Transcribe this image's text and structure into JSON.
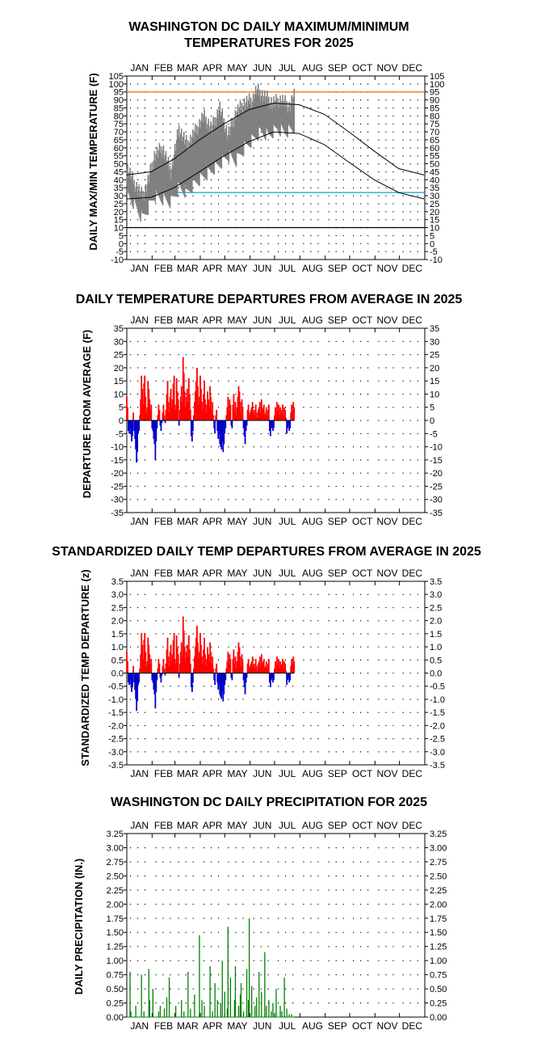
{
  "months": [
    "JAN",
    "FEB",
    "MAR",
    "APR",
    "MAY",
    "JUN",
    "JUL",
    "AUG",
    "SEP",
    "OCT",
    "NOV",
    "DEC"
  ],
  "colors": {
    "frame": "#000000",
    "observed": "#808080",
    "normal": "#000000",
    "hot_line": "#ff6600",
    "cold_line": "#00aacc",
    "zero_line": "#000000",
    "above": "#ff0000",
    "below": "#0000cc",
    "precip": "#008000"
  },
  "chart_data": [
    {
      "type": "line",
      "title_line1": "WASHINGTON DC DAILY MAXIMUM/MINIMUM",
      "title_line2": "TEMPERATURES FOR 2025",
      "ylabel": "DAILY MAX/MIN TEMPERATURE (F)",
      "ylim": [
        -10,
        105
      ],
      "yticks": [
        105,
        100,
        95,
        90,
        85,
        80,
        75,
        70,
        65,
        60,
        55,
        50,
        45,
        40,
        35,
        30,
        25,
        20,
        15,
        10,
        5,
        0,
        -5,
        -10
      ],
      "reference_lines": [
        95,
        32,
        10
      ],
      "normal_max": [
        [
          1,
          43
        ],
        [
          31,
          45
        ],
        [
          59,
          53
        ],
        [
          90,
          65
        ],
        [
          120,
          75
        ],
        [
          151,
          84
        ],
        [
          181,
          88
        ],
        [
          212,
          87
        ],
        [
          243,
          81
        ],
        [
          273,
          70
        ],
        [
          304,
          58
        ],
        [
          334,
          47
        ],
        [
          365,
          43
        ]
      ],
      "normal_min": [
        [
          1,
          28
        ],
        [
          31,
          29
        ],
        [
          59,
          35
        ],
        [
          90,
          45
        ],
        [
          120,
          55
        ],
        [
          151,
          64
        ],
        [
          181,
          70
        ],
        [
          212,
          69
        ],
        [
          243,
          62
        ],
        [
          273,
          51
        ],
        [
          304,
          40
        ],
        [
          334,
          32
        ],
        [
          365,
          28
        ]
      ],
      "observed_days_through": 206,
      "observed_max": [
        [
          1,
          48
        ],
        [
          10,
          38
        ],
        [
          20,
          30
        ],
        [
          25,
          35
        ],
        [
          35,
          55
        ],
        [
          45,
          60
        ],
        [
          55,
          45
        ],
        [
          65,
          72
        ],
        [
          75,
          62
        ],
        [
          85,
          70
        ],
        [
          95,
          80
        ],
        [
          105,
          72
        ],
        [
          115,
          85
        ],
        [
          125,
          68
        ],
        [
          135,
          82
        ],
        [
          145,
          88
        ],
        [
          155,
          90
        ],
        [
          160,
          96
        ],
        [
          170,
          92
        ],
        [
          180,
          88
        ],
        [
          190,
          90
        ],
        [
          200,
          86
        ],
        [
          206,
          92
        ]
      ],
      "observed_min": [
        [
          1,
          32
        ],
        [
          10,
          25
        ],
        [
          20,
          16
        ],
        [
          25,
          20
        ],
        [
          35,
          30
        ],
        [
          45,
          28
        ],
        [
          55,
          26
        ],
        [
          65,
          35
        ],
        [
          75,
          32
        ],
        [
          85,
          38
        ],
        [
          95,
          42
        ],
        [
          105,
          46
        ],
        [
          115,
          50
        ],
        [
          125,
          55
        ],
        [
          135,
          52
        ],
        [
          145,
          60
        ],
        [
          155,
          65
        ],
        [
          165,
          70
        ],
        [
          175,
          68
        ],
        [
          185,
          72
        ],
        [
          195,
          70
        ],
        [
          206,
          72
        ]
      ]
    },
    {
      "type": "bar",
      "title": "DAILY TEMPERATURE DEPARTURES FROM AVERAGE IN 2025",
      "ylabel": "DEPARTURE FROM AVERAGE (F)",
      "ylim": [
        -35,
        35
      ],
      "yticks": [
        35,
        30,
        25,
        20,
        15,
        10,
        5,
        0,
        -5,
        -10,
        -15,
        -20,
        -25,
        -30,
        -35
      ],
      "x": [
        1,
        2,
        3,
        4,
        5,
        6,
        7,
        8,
        9,
        10,
        11,
        12,
        13,
        14,
        15,
        16,
        17,
        18,
        19,
        20,
        21,
        22,
        23,
        24,
        25,
        26,
        27,
        28,
        29,
        30,
        31,
        32,
        33,
        34,
        35,
        36,
        37,
        38,
        39,
        40,
        41,
        42,
        43,
        44,
        45,
        46,
        47,
        48,
        49,
        50,
        51,
        52,
        53,
        54,
        55,
        56,
        57,
        58,
        59,
        60,
        61,
        62,
        63,
        64,
        65,
        66,
        67,
        68,
        69,
        70,
        71,
        72,
        73,
        74,
        75,
        76,
        77,
        78,
        79,
        80,
        81,
        82,
        83,
        84,
        85,
        86,
        87,
        88,
        89,
        90,
        91,
        92,
        93,
        94,
        95,
        96,
        97,
        98,
        99,
        100,
        101,
        102,
        103,
        104,
        105,
        106,
        107,
        108,
        109,
        110,
        111,
        112,
        113,
        114,
        115,
        116,
        117,
        118,
        119,
        120,
        121,
        122,
        123,
        124,
        125,
        126,
        127,
        128,
        129,
        130,
        131,
        132,
        133,
        134,
        135,
        136,
        137,
        138,
        139,
        140,
        141,
        142,
        143,
        144,
        145,
        146,
        147,
        148,
        149,
        150,
        151,
        152,
        153,
        154,
        155,
        156,
        157,
        158,
        159,
        160,
        161,
        162,
        163,
        164,
        165,
        166,
        167,
        168,
        169,
        170,
        171,
        172,
        173,
        174,
        175,
        176,
        177,
        178,
        179,
        180,
        181,
        182,
        183,
        184,
        185,
        186,
        187,
        188,
        189,
        190,
        191,
        192,
        193,
        194,
        195,
        196,
        197,
        198,
        199,
        200,
        201,
        202,
        203,
        204,
        205,
        206
      ],
      "values": [
        9,
        5,
        -4,
        -5,
        -3,
        -5,
        -8,
        -6,
        3,
        -4,
        -7,
        -11,
        -16,
        -12,
        -5,
        -4,
        2,
        8,
        17,
        12,
        6,
        14,
        17,
        9,
        3,
        5,
        15,
        12,
        8,
        4,
        6,
        -3,
        -4,
        -7,
        -9,
        -15,
        -8,
        -3,
        2,
        6,
        4,
        -2,
        -4,
        -1,
        3,
        6,
        2,
        -1,
        4,
        10,
        15,
        7,
        3,
        9,
        12,
        5,
        8,
        14,
        17,
        6,
        4,
        16,
        11,
        8,
        -2,
        4,
        9,
        13,
        7,
        24,
        18,
        11,
        5,
        9,
        12,
        7,
        16,
        10,
        4,
        -6,
        -8,
        -4,
        2,
        7,
        11,
        15,
        20,
        13,
        6,
        9,
        17,
        12,
        7,
        4,
        10,
        15,
        8,
        3,
        6,
        11,
        8,
        5,
        13,
        9,
        4,
        7,
        2,
        -3,
        -5,
        2,
        4,
        -4,
        -7,
        -5,
        -9,
        -10,
        -11,
        -8,
        -12,
        -9,
        -5,
        -3,
        2,
        5,
        9,
        4,
        8,
        6,
        -2,
        -3,
        6,
        10,
        4,
        7,
        2,
        5,
        9,
        13,
        11,
        7,
        3,
        8,
        5,
        -3,
        -6,
        -9,
        -4,
        -2,
        4,
        6,
        3,
        2,
        4,
        5,
        7,
        3,
        4,
        2,
        6,
        3,
        1,
        4,
        5,
        7,
        3,
        8,
        5,
        4,
        6,
        2,
        3,
        5,
        2,
        4,
        6,
        -4,
        -6,
        -3,
        -2,
        -4,
        -3,
        2,
        5,
        3,
        7,
        4,
        6,
        2,
        5,
        3,
        4,
        6,
        2,
        5,
        4,
        1,
        -5,
        -3,
        -2,
        -4,
        -3,
        3,
        6,
        4,
        7,
        5
      ]
    },
    {
      "type": "bar",
      "title": "STANDARDIZED DAILY TEMP DEPARTURES FROM AVERAGE IN 2025",
      "ylabel": "STANDARDIZED TEMP DEPARTURE (z)",
      "ylim": [
        -3.5,
        3.5
      ],
      "yticks": [
        3.5,
        3.0,
        2.5,
        2.0,
        1.5,
        1.0,
        0.5,
        0.0,
        -0.5,
        -1.0,
        -1.5,
        -2.0,
        -2.5,
        -3.0,
        -3.5
      ],
      "values_from_series": 1,
      "scale_factor": 0.09
    },
    {
      "type": "bar",
      "title": "WASHINGTON DC DAILY PRECIPITATION FOR 2025",
      "ylabel": "DAILY PRECIPITATION (IN.)",
      "ylim": [
        0,
        3.25
      ],
      "yticks": [
        3.25,
        3.0,
        2.75,
        2.5,
        2.25,
        2.0,
        1.75,
        1.5,
        1.25,
        1.0,
        0.75,
        0.5,
        0.25,
        0.0
      ],
      "x": [
        5,
        6,
        12,
        19,
        22,
        28,
        29,
        33,
        40,
        42,
        47,
        50,
        53,
        61,
        68,
        71,
        76,
        79,
        84,
        90,
        93,
        96,
        103,
        106,
        109,
        112,
        116,
        118,
        121,
        124,
        125,
        128,
        133,
        134,
        138,
        140,
        141,
        144,
        148,
        150,
        151,
        154,
        158,
        160,
        163,
        166,
        170,
        172,
        175,
        178,
        180,
        184,
        189,
        191,
        194,
        197,
        200,
        203
      ],
      "values": [
        0.8,
        0.1,
        0.2,
        0.75,
        0.1,
        0.85,
        0.3,
        0.5,
        0.1,
        0.2,
        0.15,
        0.35,
        0.7,
        0.2,
        0.3,
        0.1,
        0.8,
        0.15,
        0.4,
        1.45,
        0.3,
        0.2,
        0.9,
        0.1,
        0.6,
        0.3,
        0.25,
        1.0,
        0.45,
        0.15,
        1.6,
        0.7,
        0.3,
        0.9,
        0.2,
        0.4,
        0.6,
        0.1,
        0.85,
        0.3,
        1.75,
        0.55,
        0.2,
        0.35,
        0.8,
        0.45,
        1.15,
        0.2,
        0.3,
        0.1,
        0.25,
        0.5,
        0.2,
        0.1,
        0.7,
        0.15,
        0.05,
        0.05
      ]
    }
  ]
}
